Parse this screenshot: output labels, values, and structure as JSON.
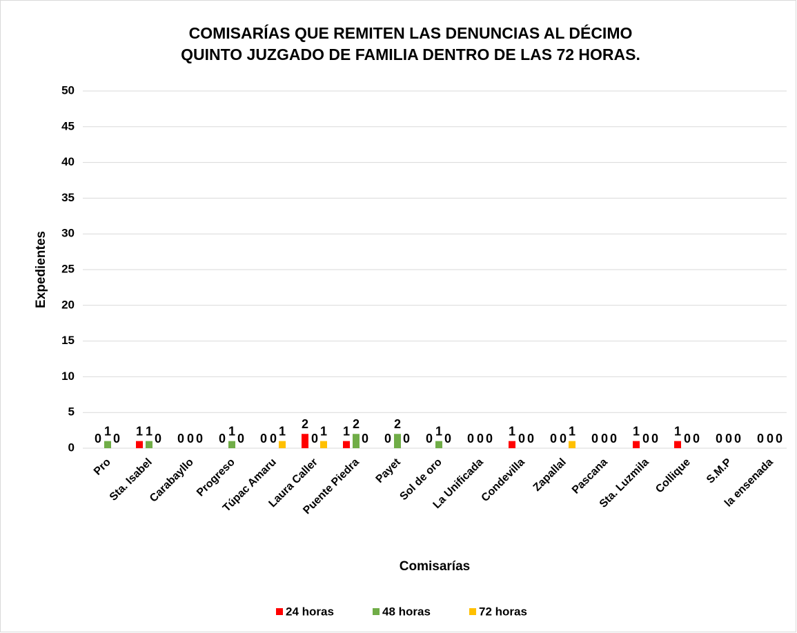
{
  "chart_data": {
    "type": "bar",
    "title": [
      "COMISARÍAS QUE REMITEN  LAS DENUNCIAS AL DÉCIMO",
      "QUINTO JUZGADO DE FAMILIA DENTRO DE LAS 72 HORAS."
    ],
    "x_label": "Comisarías",
    "y_label": "Expedientes",
    "categories": [
      "Pro",
      "Sta. Isabel",
      "Carabayllo",
      "Progreso",
      "Túpac Amaru",
      "Laura Caller",
      "Puente Piedra",
      "Payet",
      "Sol de oro",
      "La Unificada",
      "Condevilla",
      "Zapallal",
      "Pascana",
      "Sta. Luzmila",
      "Collique",
      "S.M.P",
      "la ensenada"
    ],
    "series": [
      {
        "name": "24 horas",
        "color": "#ff0000",
        "values": [
          0,
          1,
          0,
          0,
          0,
          2,
          1,
          0,
          0,
          0,
          1,
          0,
          0,
          1,
          1,
          0,
          0
        ]
      },
      {
        "name": "48 horas",
        "color": "#70ad47",
        "values": [
          1,
          1,
          0,
          1,
          0,
          0,
          2,
          2,
          1,
          0,
          0,
          0,
          0,
          0,
          0,
          0,
          0
        ]
      },
      {
        "name": "72 horas",
        "color": "#ffc000",
        "values": [
          0,
          0,
          0,
          0,
          1,
          1,
          0,
          0,
          0,
          0,
          0,
          1,
          0,
          0,
          0,
          0,
          0
        ]
      }
    ],
    "ylim": [
      0,
      50
    ],
    "yticks": [
      0,
      5,
      10,
      15,
      20,
      25,
      30,
      35,
      40,
      45,
      50
    ],
    "grid": true,
    "legend": "bottom"
  }
}
